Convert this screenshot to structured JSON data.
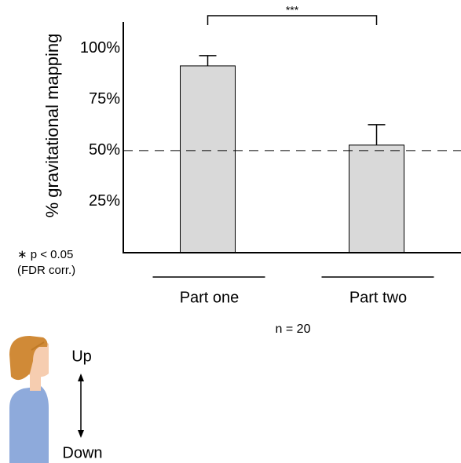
{
  "chart_data": {
    "type": "bar",
    "ylabel": "% gravitational mapping",
    "categories": [
      "Part one",
      "Part two"
    ],
    "values": [
      91.5,
      52.7
    ],
    "errors": [
      5,
      10
    ],
    "color": "#d9d9d9",
    "ylim": [
      0,
      113
    ],
    "yticks": [
      {
        "value": 25,
        "label": "25%"
      },
      {
        "value": 50,
        "label": "50%"
      },
      {
        "value": 75,
        "label": "75%"
      },
      {
        "value": 100,
        "label": "100%"
      }
    ],
    "reference_line": 50,
    "significance": "***",
    "annotations": [
      "∗ p < 0.05",
      "(FDR corr.)",
      "n = 20"
    ],
    "legend_labels": [
      "Up",
      "Down"
    ]
  }
}
